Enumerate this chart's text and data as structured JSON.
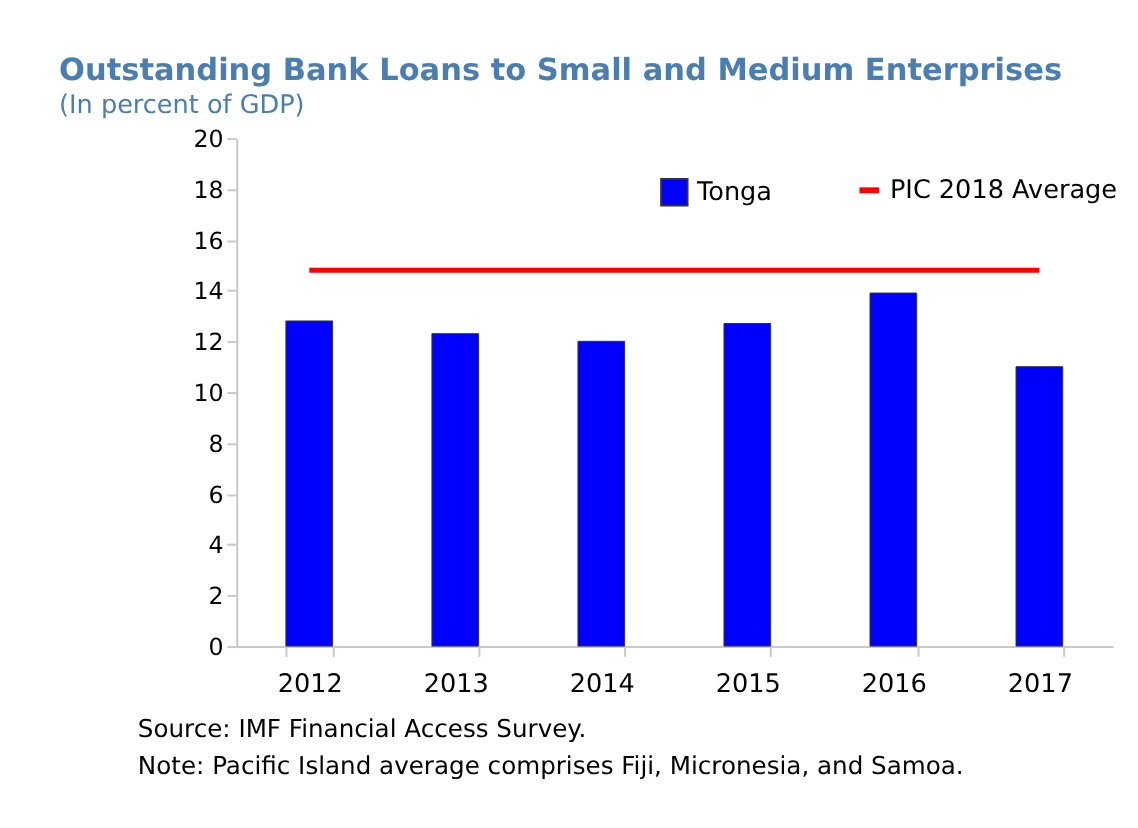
{
  "chart_data": {
    "type": "bar",
    "title": "Outstanding Bank Loans to Small and Medium Enterprises",
    "subtitle": "(In percent of GDP)",
    "categories": [
      "2012",
      "2013",
      "2014",
      "2015",
      "2016",
      "2017"
    ],
    "series": [
      {
        "name": "Tonga",
        "color": "#0000ff",
        "values": [
          12.8,
          12.3,
          12.0,
          12.7,
          13.9,
          11.0
        ]
      },
      {
        "name": "PIC 2018 Average",
        "type": "line",
        "color": "#ff0000",
        "values": [
          14.8,
          14.8,
          14.8,
          14.8,
          14.8,
          14.8
        ]
      }
    ],
    "ylim": [
      0,
      20
    ],
    "yticks": [
      0,
      2,
      4,
      6,
      8,
      10,
      12,
      14,
      16,
      18,
      20
    ],
    "grid": false,
    "legend": "top right",
    "marker": "none",
    "annotations": [
      "Source: IMF Financial Access Survey.",
      "Note: Pacific Island average comprises Fiji, Micronesia, and Samoa."
    ]
  }
}
